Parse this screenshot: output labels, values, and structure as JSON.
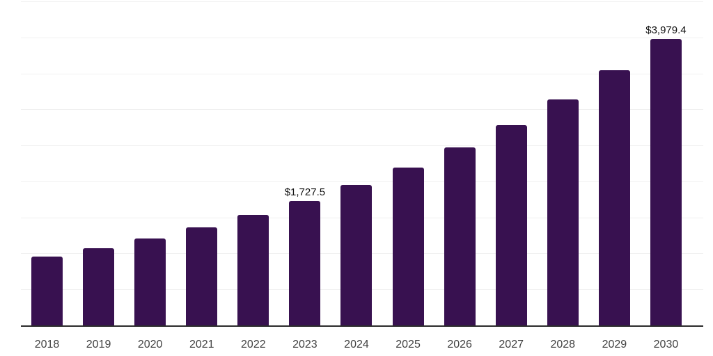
{
  "chart_data": {
    "type": "bar",
    "title": "",
    "xlabel": "",
    "ylabel": "",
    "categories": [
      "2018",
      "2019",
      "2020",
      "2021",
      "2022",
      "2023",
      "2024",
      "2025",
      "2026",
      "2027",
      "2028",
      "2029",
      "2030"
    ],
    "values": [
      952,
      1073,
      1210,
      1364,
      1535,
      1727.5,
      1949,
      2196,
      2470,
      2786,
      3143,
      3540,
      3979.4
    ],
    "data_labels": [
      "",
      "",
      "",
      "",
      "",
      "$1,727.5",
      "",
      "",
      "",
      "",
      "",
      "",
      "$3,979.4"
    ],
    "ylim": [
      0,
      4500
    ],
    "gridline_interval": 500,
    "grid": "horizontal-only",
    "legend_position": "none",
    "y_axis_tick_labels_visible": false
  },
  "style": {
    "bar_color": "#381150",
    "gridline_color": "#f0f0f0",
    "axis_line_color": "#2b2b2b",
    "data_label_color": "#111111",
    "tick_label_color": "#414141",
    "background_color": "#ffffff"
  }
}
